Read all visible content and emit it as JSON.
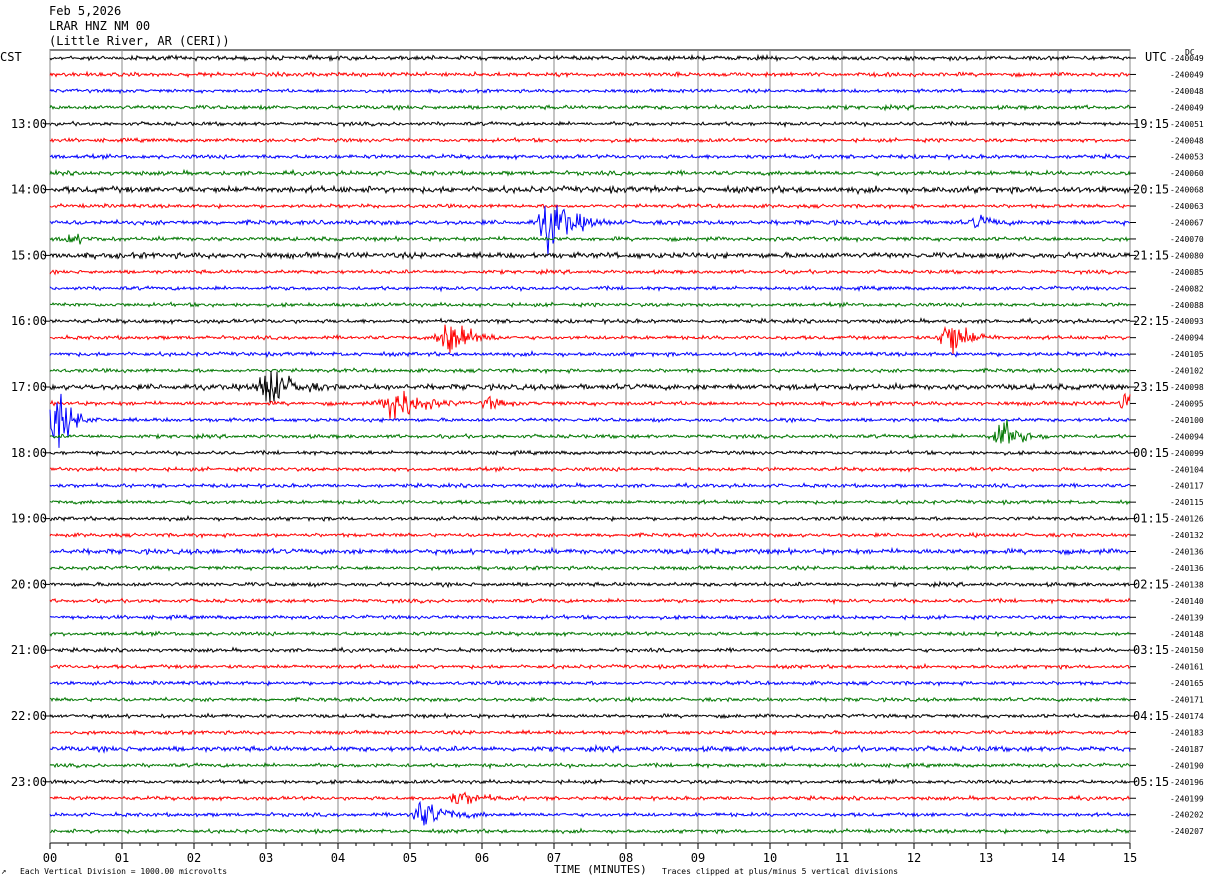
{
  "header": {
    "date": "Feb 5,2026",
    "station": "LRAR HNZ NM 00",
    "location": "(Little River, AR (CERI))"
  },
  "left_timezone": "CST",
  "right_timezone": "UTC",
  "dc_label": "DC",
  "footer": {
    "scale_note": "Each Vertical Division = 1000.00 microvolts",
    "clip_note": "Traces clipped at plus/minus 5 vertical divisions",
    "corner_mark": "↗"
  },
  "colors": [
    "#000000",
    "#ff0000",
    "#0000ff",
    "#007700"
  ],
  "chart_data": {
    "type": "line",
    "title": "LRAR HNZ NM 00",
    "xlabel": "TIME (MINUTES)",
    "x_ticks": [
      "00",
      "01",
      "02",
      "03",
      "04",
      "05",
      "06",
      "07",
      "08",
      "09",
      "10",
      "11",
      "12",
      "13",
      "14",
      "15"
    ],
    "xlim": [
      0,
      15
    ],
    "grid": true,
    "left_hour_labels": [
      "13:00",
      "14:00",
      "15:00",
      "16:00",
      "17:00",
      "18:00",
      "19:00",
      "20:00",
      "21:00",
      "22:00",
      "23:00"
    ],
    "right_hour_labels": [
      "19:15",
      "20:15",
      "21:15",
      "22:15",
      "23:15",
      "00:15",
      "01:15",
      "02:15",
      "03:15",
      "04:15",
      "05:15"
    ],
    "dc_offsets": [
      "240049",
      "240049",
      "240048",
      "240049",
      "240051",
      "240048",
      "240053",
      "240060",
      "240068",
      "240063",
      "240067",
      "240070",
      "240080",
      "240085",
      "240082",
      "240088",
      "240093",
      "240094",
      "240105",
      "240102",
      "240098",
      "240095",
      "240100",
      "240094",
      "240099",
      "240104",
      "240117",
      "240115",
      "240126",
      "240132",
      "240136",
      "240136",
      "240138",
      "240140",
      "240139",
      "240148",
      "240150",
      "240161",
      "240165",
      "240171",
      "240174",
      "240183",
      "240187",
      "240190",
      "240196",
      "240199",
      "240202",
      "240207"
    ],
    "noise_level": [
      1.5,
      1.4,
      1.2,
      1.4,
      1.3,
      1.3,
      1.4,
      1.5,
      2.2,
      1.3,
      1.6,
      1.4,
      2.0,
      1.3,
      1.3,
      1.3,
      1.4,
      1.3,
      1.4,
      1.3,
      2.0,
      1.4,
      1.3,
      1.3,
      1.3,
      1.3,
      1.3,
      1.3,
      1.3,
      1.3,
      1.8,
      1.3,
      1.4,
      1.3,
      1.3,
      1.3,
      1.3,
      1.3,
      1.3,
      1.3,
      1.3,
      1.3,
      1.8,
      1.3,
      1.3,
      1.3,
      1.3,
      1.3
    ],
    "events": [
      {
        "trace": 10,
        "minute": 6.95,
        "amp": 22,
        "width": 0.55
      },
      {
        "trace": 10,
        "minute": 12.9,
        "amp": 5,
        "width": 0.35
      },
      {
        "trace": 11,
        "minute": 0.3,
        "amp": 4,
        "width": 0.35
      },
      {
        "trace": 17,
        "minute": 5.55,
        "amp": 18,
        "width": 0.5
      },
      {
        "trace": 17,
        "minute": 12.5,
        "amp": 17,
        "width": 0.45
      },
      {
        "trace": 20,
        "minute": 3.05,
        "amp": 16,
        "width": 0.55
      },
      {
        "trace": 21,
        "minute": 4.8,
        "amp": 15,
        "width": 0.6
      },
      {
        "trace": 21,
        "minute": 6.1,
        "amp": 5,
        "width": 0.3
      },
      {
        "trace": 21,
        "minute": 14.95,
        "amp": 10,
        "width": 0.3
      },
      {
        "trace": 22,
        "minute": 0.1,
        "amp": 22,
        "width": 0.4
      },
      {
        "trace": 23,
        "minute": 13.2,
        "amp": 14,
        "width": 0.45
      },
      {
        "trace": 45,
        "minute": 5.7,
        "amp": 5,
        "width": 0.6
      },
      {
        "trace": 46,
        "minute": 5.2,
        "amp": 10,
        "width": 0.6
      }
    ]
  }
}
